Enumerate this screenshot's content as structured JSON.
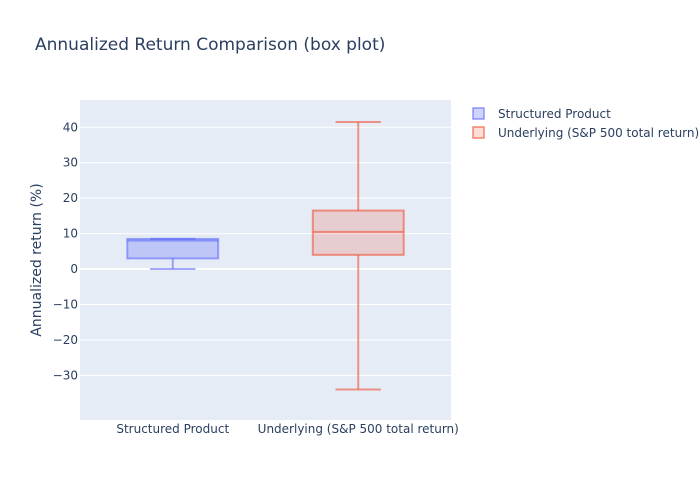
{
  "chart_data": {
    "type": "box",
    "title": "Annualized Return Comparison (box plot)",
    "ylabel": "Annualized return (%)",
    "ylim": [
      -42.6,
      47.7
    ],
    "yticks": [
      {
        "value": 40,
        "label": "40"
      },
      {
        "value": 30,
        "label": "30"
      },
      {
        "value": 20,
        "label": "20"
      },
      {
        "value": 10,
        "label": "10"
      },
      {
        "value": 0,
        "label": "0"
      },
      {
        "value": -10,
        "label": "−10"
      },
      {
        "value": -20,
        "label": "−20"
      },
      {
        "value": -30,
        "label": "−30"
      }
    ],
    "grid": true,
    "legend_position": "right",
    "categories": [
      "Structured Product",
      "Underlying (S&P 500 total return)"
    ],
    "series": [
      {
        "name": "Structured Product",
        "color": "#636efa",
        "fill": "rgba(99,110,250,0.3)",
        "min": 0,
        "q1": 3,
        "median": 8,
        "q3": 8.5,
        "max": 8.5
      },
      {
        "name": "Underlying (S&P 500 total return)",
        "color": "#ef553b",
        "fill": "rgba(239,85,59,0.2)",
        "min": -34,
        "q1": 4,
        "median": 10.5,
        "q3": 16.5,
        "max": 41.5
      }
    ]
  }
}
